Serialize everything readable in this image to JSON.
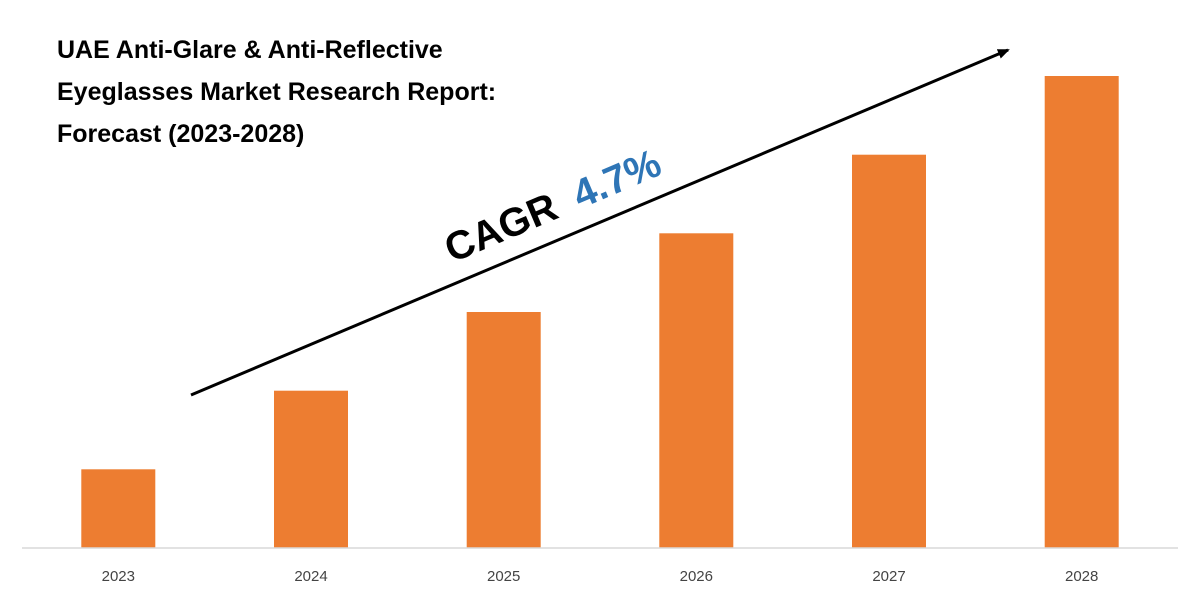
{
  "chart_data": {
    "type": "bar",
    "title_lines": [
      "UAE Anti-Glare & Anti-Reflective",
      "Eyeglasses Market Research Report:",
      "Forecast (2023-2028)"
    ],
    "categories": [
      "2023",
      "2024",
      "2025",
      "2026",
      "2027",
      "2028"
    ],
    "values": [
      1.0,
      2.0,
      3.0,
      4.0,
      5.0,
      6.0
    ],
    "ylim": [
      0,
      6.0
    ],
    "xlabel": "",
    "ylabel": "",
    "grid": false,
    "legend": "none",
    "annotation": {
      "prefix": "CAGR",
      "value": "4.7%"
    },
    "colors": {
      "bar": "#ED7D31",
      "annotation_value": "#2E75B6",
      "annotation_prefix": "#000000",
      "axis": "#D9D9D9"
    }
  }
}
